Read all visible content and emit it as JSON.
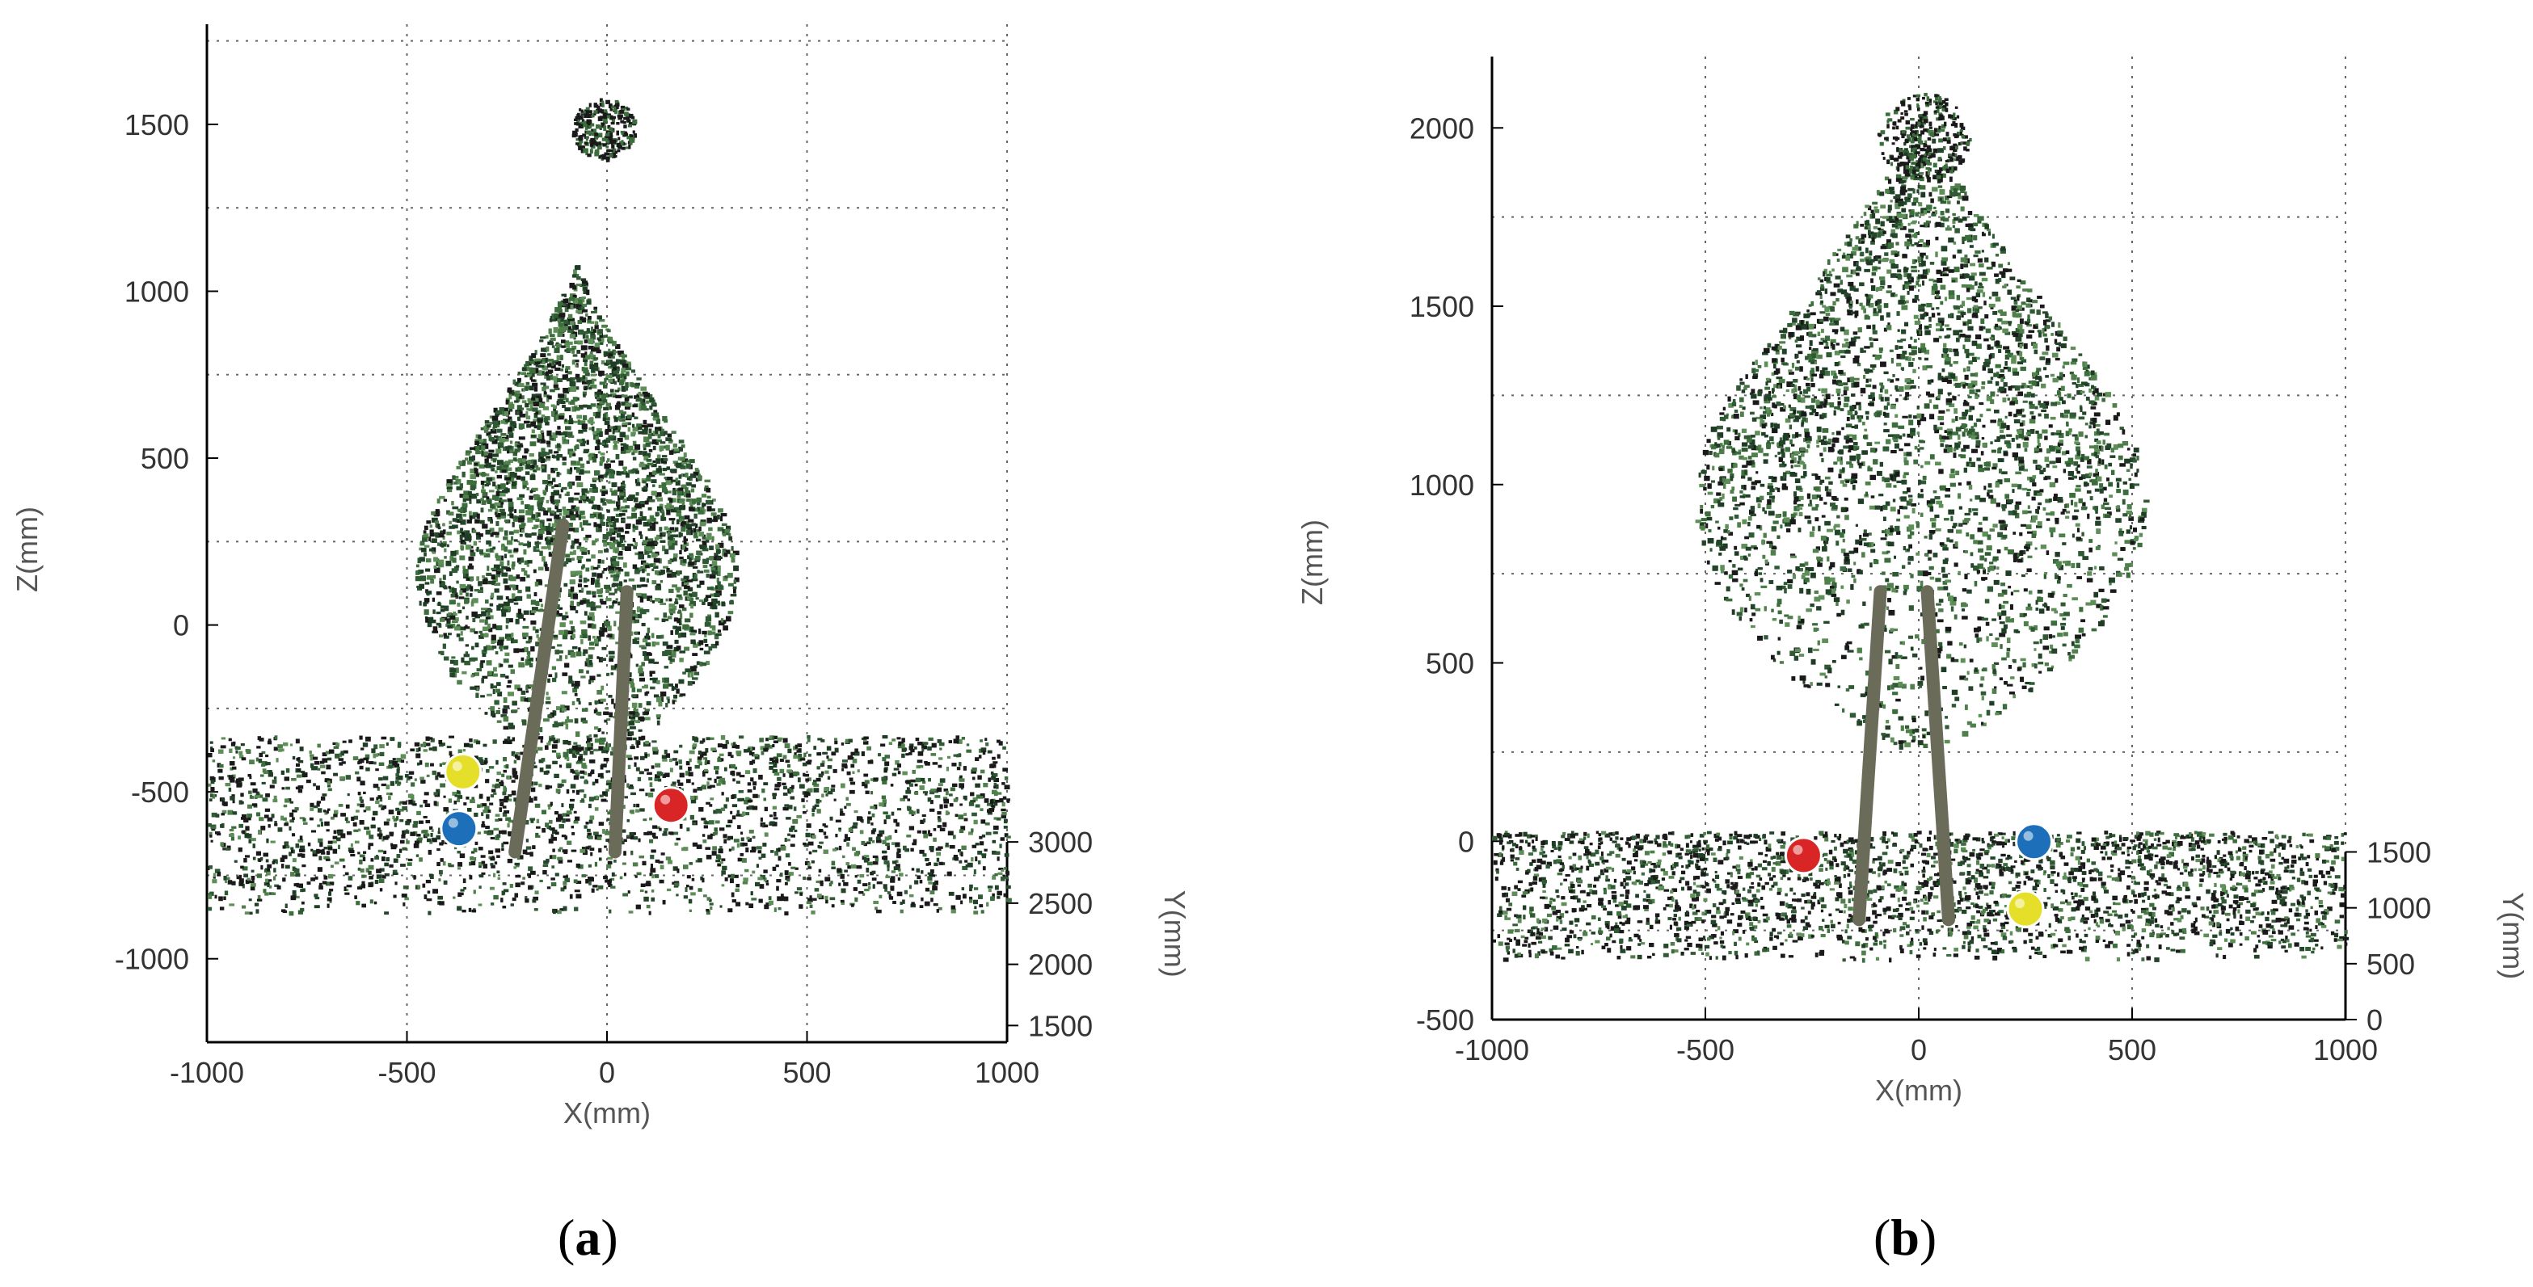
{
  "colors": {
    "foliage": [
      "#2f5a34",
      "#3c6e3d",
      "#1f3d24",
      "#4f7f4a",
      "#23452a",
      "#5f8f58"
    ],
    "trunk": "#6b6b5a",
    "dark_points": "#1a1a1a",
    "marker_red": "#d92525",
    "marker_blue": "#1c6fb8",
    "marker_yellow": "#e6df2a",
    "grid": "#666666",
    "axis": "#000000"
  },
  "captions": [
    {
      "open": "(",
      "letter": "a",
      "close": ")"
    },
    {
      "open": "(",
      "letter": "b",
      "close": ")"
    }
  ],
  "chart_data": [
    {
      "type": "scatter",
      "description_of_marks": "3D point cloud of a tree viewed along Y",
      "xlabel": "X(mm)",
      "ylabel": "Z(mm)",
      "zlabel": "Y(mm)",
      "xlim": [
        -1000,
        1000
      ],
      "ylim": [
        -1250,
        1800
      ],
      "zlim": [
        1500,
        3000
      ],
      "xticks": [
        "-1000",
        "-500",
        "0",
        "500",
        "1000"
      ],
      "yticks": [
        "-1000",
        "-500",
        "0",
        "500",
        "1000",
        "1500"
      ],
      "zticks": [
        "1500",
        "2000",
        "2500",
        "3000"
      ],
      "ytick_values": [
        -1000,
        -500,
        0,
        500,
        1000,
        1500
      ],
      "zaxis_z_range": [
        -1200,
        -650
      ],
      "grid": true,
      "trunks": [
        {
          "base": [
            -230,
            -680
          ],
          "top": [
            -110,
            300
          ]
        },
        {
          "base": [
            20,
            -680
          ],
          "top": [
            50,
            100
          ]
        }
      ],
      "crown": {
        "cx": -80,
        "cz": 320,
        "rx": 620,
        "rz": 760
      },
      "canopy_cluster": {
        "cx": -10,
        "cz": 1490,
        "rx": 80,
        "rz": 90
      },
      "ground": {
        "xmin": -1000,
        "xmax": 1000,
        "zmin": -860,
        "zmax": -330
      },
      "markers": [
        {
          "color": "yellow",
          "x": -360,
          "z": -440
        },
        {
          "color": "blue",
          "x": -370,
          "z": -610
        },
        {
          "color": "red",
          "x": 160,
          "z": -540
        }
      ]
    },
    {
      "type": "scatter",
      "description_of_marks": "3D point cloud of a tree viewed along Y",
      "xlabel": "X(mm)",
      "ylabel": "Z(mm)",
      "zlabel": "Y(mm)",
      "xlim": [
        -1000,
        1000
      ],
      "ylim": [
        -500,
        2200
      ],
      "zlim": [
        0,
        1500
      ],
      "xticks": [
        "-1000",
        "-500",
        "0",
        "500",
        "1000"
      ],
      "yticks": [
        "-500",
        "0",
        "500",
        "1000",
        "1500",
        "2000"
      ],
      "zticks": [
        "0",
        "500",
        "1000",
        "1500"
      ],
      "ytick_values": [
        -500,
        0,
        500,
        1000,
        1500,
        2000
      ],
      "zaxis_z_range": [
        -500,
        -30
      ],
      "grid": true,
      "trunks": [
        {
          "base": [
            -140,
            -220
          ],
          "top": [
            -90,
            700
          ]
        },
        {
          "base": [
            70,
            -220
          ],
          "top": [
            20,
            700
          ]
        }
      ],
      "crown": {
        "cx": 0,
        "cz": 1150,
        "rx": 820,
        "rz": 900
      },
      "canopy_cluster": {
        "cx": 10,
        "cz": 1980,
        "rx": 110,
        "rz": 120
      },
      "ground": {
        "xmin": -1000,
        "xmax": 1000,
        "zmin": -330,
        "zmax": 30
      },
      "markers": [
        {
          "color": "red",
          "x": -270,
          "z": -40
        },
        {
          "color": "blue",
          "x": 270,
          "z": -1
        },
        {
          "color": "yellow",
          "x": 250,
          "z": -190
        }
      ]
    }
  ]
}
